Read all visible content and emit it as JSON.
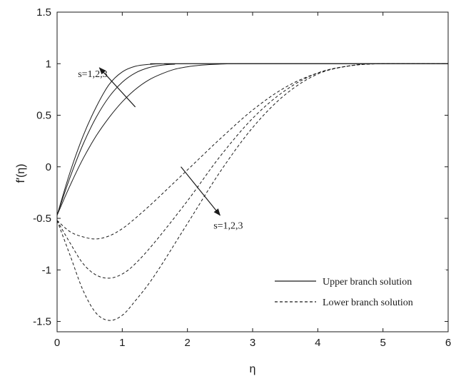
{
  "chart_data": {
    "type": "line",
    "title": "",
    "xlabel": "η",
    "ylabel": "f′(η)",
    "xlim": [
      0,
      6
    ],
    "ylim": [
      -1.6,
      1.5
    ],
    "x_ticks": [
      0,
      1,
      2,
      3,
      4,
      5,
      6
    ],
    "x_tick_labels": [
      "0",
      "1",
      "2",
      "3",
      "4",
      "5",
      "6"
    ],
    "y_ticks": [
      -1.5,
      -1,
      -0.5,
      0,
      0.5,
      1,
      1.5
    ],
    "y_tick_labels": [
      "-1.5",
      "-1",
      "-0.5",
      "0",
      "0.5",
      "1",
      "1.5"
    ],
    "grid": false,
    "legend_position": "lower-right",
    "legend": [
      {
        "label": "Upper branch solution",
        "style": "solid"
      },
      {
        "label": "Lower branch solution",
        "style": "dashed"
      }
    ],
    "annotations": [
      {
        "text": "s=1,2,3",
        "x": 0.32,
        "y": 0.87,
        "arrow_from": [
          1.2,
          0.58
        ],
        "arrow_to": [
          0.65,
          0.96
        ]
      },
      {
        "text": "s=1,2,3",
        "x": 2.4,
        "y": -0.6,
        "arrow_from": [
          1.9,
          0.0
        ],
        "arrow_to": [
          2.5,
          -0.47
        ]
      }
    ],
    "series": [
      {
        "style": "solid",
        "points": [
          [
            0,
            -0.47
          ],
          [
            0.2,
            -0.05
          ],
          [
            0.4,
            0.3
          ],
          [
            0.6,
            0.58
          ],
          [
            0.8,
            0.8
          ],
          [
            1.0,
            0.92
          ],
          [
            1.2,
            0.975
          ],
          [
            1.4,
            0.993
          ],
          [
            1.6,
            0.999
          ],
          [
            1.8,
            1.0
          ],
          [
            6,
            1.0
          ]
        ]
      },
      {
        "style": "solid",
        "points": [
          [
            0,
            -0.47
          ],
          [
            0.2,
            -0.1
          ],
          [
            0.4,
            0.22
          ],
          [
            0.6,
            0.48
          ],
          [
            0.8,
            0.68
          ],
          [
            1.0,
            0.82
          ],
          [
            1.2,
            0.91
          ],
          [
            1.4,
            0.96
          ],
          [
            1.6,
            0.985
          ],
          [
            1.8,
            0.995
          ],
          [
            2.0,
            1.0
          ],
          [
            6,
            1.0
          ]
        ]
      },
      {
        "style": "solid",
        "points": [
          [
            0,
            -0.47
          ],
          [
            0.2,
            -0.18
          ],
          [
            0.4,
            0.08
          ],
          [
            0.6,
            0.3
          ],
          [
            0.8,
            0.48
          ],
          [
            1.0,
            0.63
          ],
          [
            1.2,
            0.75
          ],
          [
            1.4,
            0.84
          ],
          [
            1.6,
            0.9
          ],
          [
            1.8,
            0.945
          ],
          [
            2.0,
            0.97
          ],
          [
            2.2,
            0.985
          ],
          [
            2.4,
            0.993
          ],
          [
            2.6,
            0.998
          ],
          [
            2.8,
            1.0
          ],
          [
            6,
            1.0
          ]
        ]
      },
      {
        "style": "dashed",
        "points": [
          [
            0,
            -0.52
          ],
          [
            0.2,
            -0.63
          ],
          [
            0.4,
            -0.68
          ],
          [
            0.6,
            -0.7
          ],
          [
            0.8,
            -0.67
          ],
          [
            1.0,
            -0.6
          ],
          [
            1.2,
            -0.5
          ],
          [
            1.5,
            -0.33
          ],
          [
            2.0,
            -0.03
          ],
          [
            2.5,
            0.27
          ],
          [
            3.0,
            0.55
          ],
          [
            3.5,
            0.77
          ],
          [
            4.0,
            0.91
          ],
          [
            4.5,
            0.98
          ],
          [
            5.0,
            1.0
          ],
          [
            6,
            1.0
          ]
        ]
      },
      {
        "style": "dashed",
        "points": [
          [
            0,
            -0.52
          ],
          [
            0.2,
            -0.74
          ],
          [
            0.4,
            -0.94
          ],
          [
            0.6,
            -1.05
          ],
          [
            0.8,
            -1.08
          ],
          [
            1.0,
            -1.04
          ],
          [
            1.2,
            -0.94
          ],
          [
            1.5,
            -0.73
          ],
          [
            2.0,
            -0.33
          ],
          [
            2.5,
            0.1
          ],
          [
            3.0,
            0.47
          ],
          [
            3.5,
            0.74
          ],
          [
            4.0,
            0.91
          ],
          [
            4.5,
            0.98
          ],
          [
            5.0,
            1.0
          ],
          [
            6,
            1.0
          ]
        ]
      },
      {
        "style": "dashed",
        "points": [
          [
            0,
            -0.52
          ],
          [
            0.2,
            -0.86
          ],
          [
            0.4,
            -1.2
          ],
          [
            0.6,
            -1.42
          ],
          [
            0.8,
            -1.49
          ],
          [
            1.0,
            -1.44
          ],
          [
            1.2,
            -1.3
          ],
          [
            1.5,
            -1.05
          ],
          [
            2.0,
            -0.55
          ],
          [
            2.5,
            -0.05
          ],
          [
            3.0,
            0.38
          ],
          [
            3.5,
            0.7
          ],
          [
            4.0,
            0.9
          ],
          [
            4.5,
            0.98
          ],
          [
            5.0,
            1.0
          ],
          [
            6,
            1.0
          ]
        ]
      }
    ]
  }
}
